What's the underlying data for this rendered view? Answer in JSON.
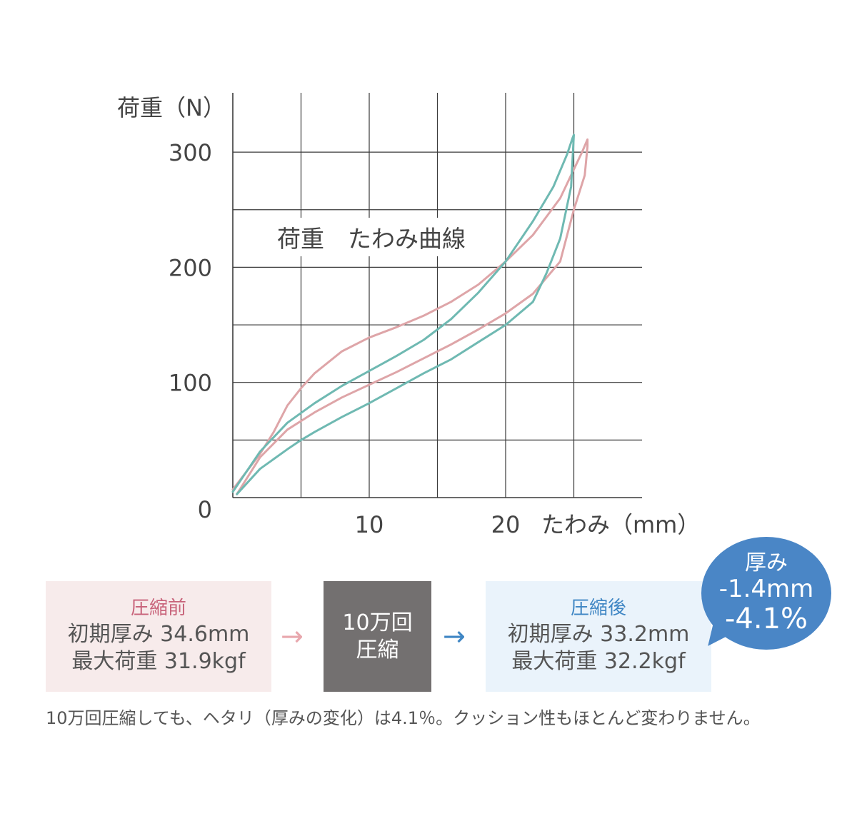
{
  "chart_data": {
    "type": "line",
    "title": "荷重　たわみ曲線",
    "ylabel": "荷重（N）",
    "xlabel": "たわみ（mm）",
    "xlim": [
      0,
      30
    ],
    "ylim": [
      0,
      350
    ],
    "x_ticks": [
      10,
      20
    ],
    "y_ticks": [
      0,
      100,
      200,
      300
    ],
    "x_grid": [
      5,
      10,
      15,
      20,
      25
    ],
    "y_grid": [
      50,
      100,
      150,
      200,
      250,
      300
    ],
    "grid": true,
    "series": [
      {
        "color": "#dea5a8",
        "x": [
          0,
          2,
          3,
          4,
          5,
          6,
          8,
          10,
          12,
          14,
          16,
          18,
          20,
          22,
          24,
          25,
          25.6,
          26,
          26,
          25.8,
          25,
          24,
          22,
          20,
          18,
          16,
          14,
          12,
          10,
          8,
          6,
          4,
          2,
          0.3
        ],
        "y": [
          7,
          38,
          57,
          80,
          95,
          108,
          127,
          139,
          148,
          158,
          170,
          185,
          205,
          228,
          260,
          285,
          300,
          311,
          305,
          280,
          250,
          205,
          177,
          160,
          146,
          133,
          121,
          109,
          98,
          87,
          74,
          59,
          35,
          3
        ]
      },
      {
        "color": "#6fb9b2",
        "x": [
          0,
          2,
          4,
          6,
          8,
          10,
          12,
          14,
          16,
          18,
          20,
          22,
          23.5,
          24.5,
          24.9,
          25,
          24.8,
          24,
          23,
          22,
          20,
          18,
          16,
          14,
          12,
          10,
          8,
          6,
          5,
          4,
          2,
          0.3
        ],
        "y": [
          5,
          40,
          65,
          82,
          97,
          110,
          123,
          137,
          155,
          178,
          205,
          240,
          270,
          298,
          312,
          315,
          270,
          225,
          195,
          170,
          150,
          135,
          120,
          108,
          95,
          82,
          70,
          57,
          50,
          42,
          25,
          3
        ]
      }
    ]
  },
  "before_box": {
    "title": "圧縮前",
    "line1": "初期厚み 34.6mm",
    "line2": "最大荷重 31.9kgf"
  },
  "process_box": {
    "line1": "10万回",
    "line2": "圧縮"
  },
  "after_box": {
    "title": "圧縮後",
    "line1": "初期厚み 33.2mm",
    "line2": "最大荷重 32.2kgf"
  },
  "arrow_glyph": "→",
  "badge": {
    "label": "厚み",
    "mm": "-1.4mm",
    "percent": "-4.1%"
  },
  "caption": "10万回圧縮しても、ヘタリ（厚みの変化）は4.1％。クッション性もほとんど変わりません。"
}
